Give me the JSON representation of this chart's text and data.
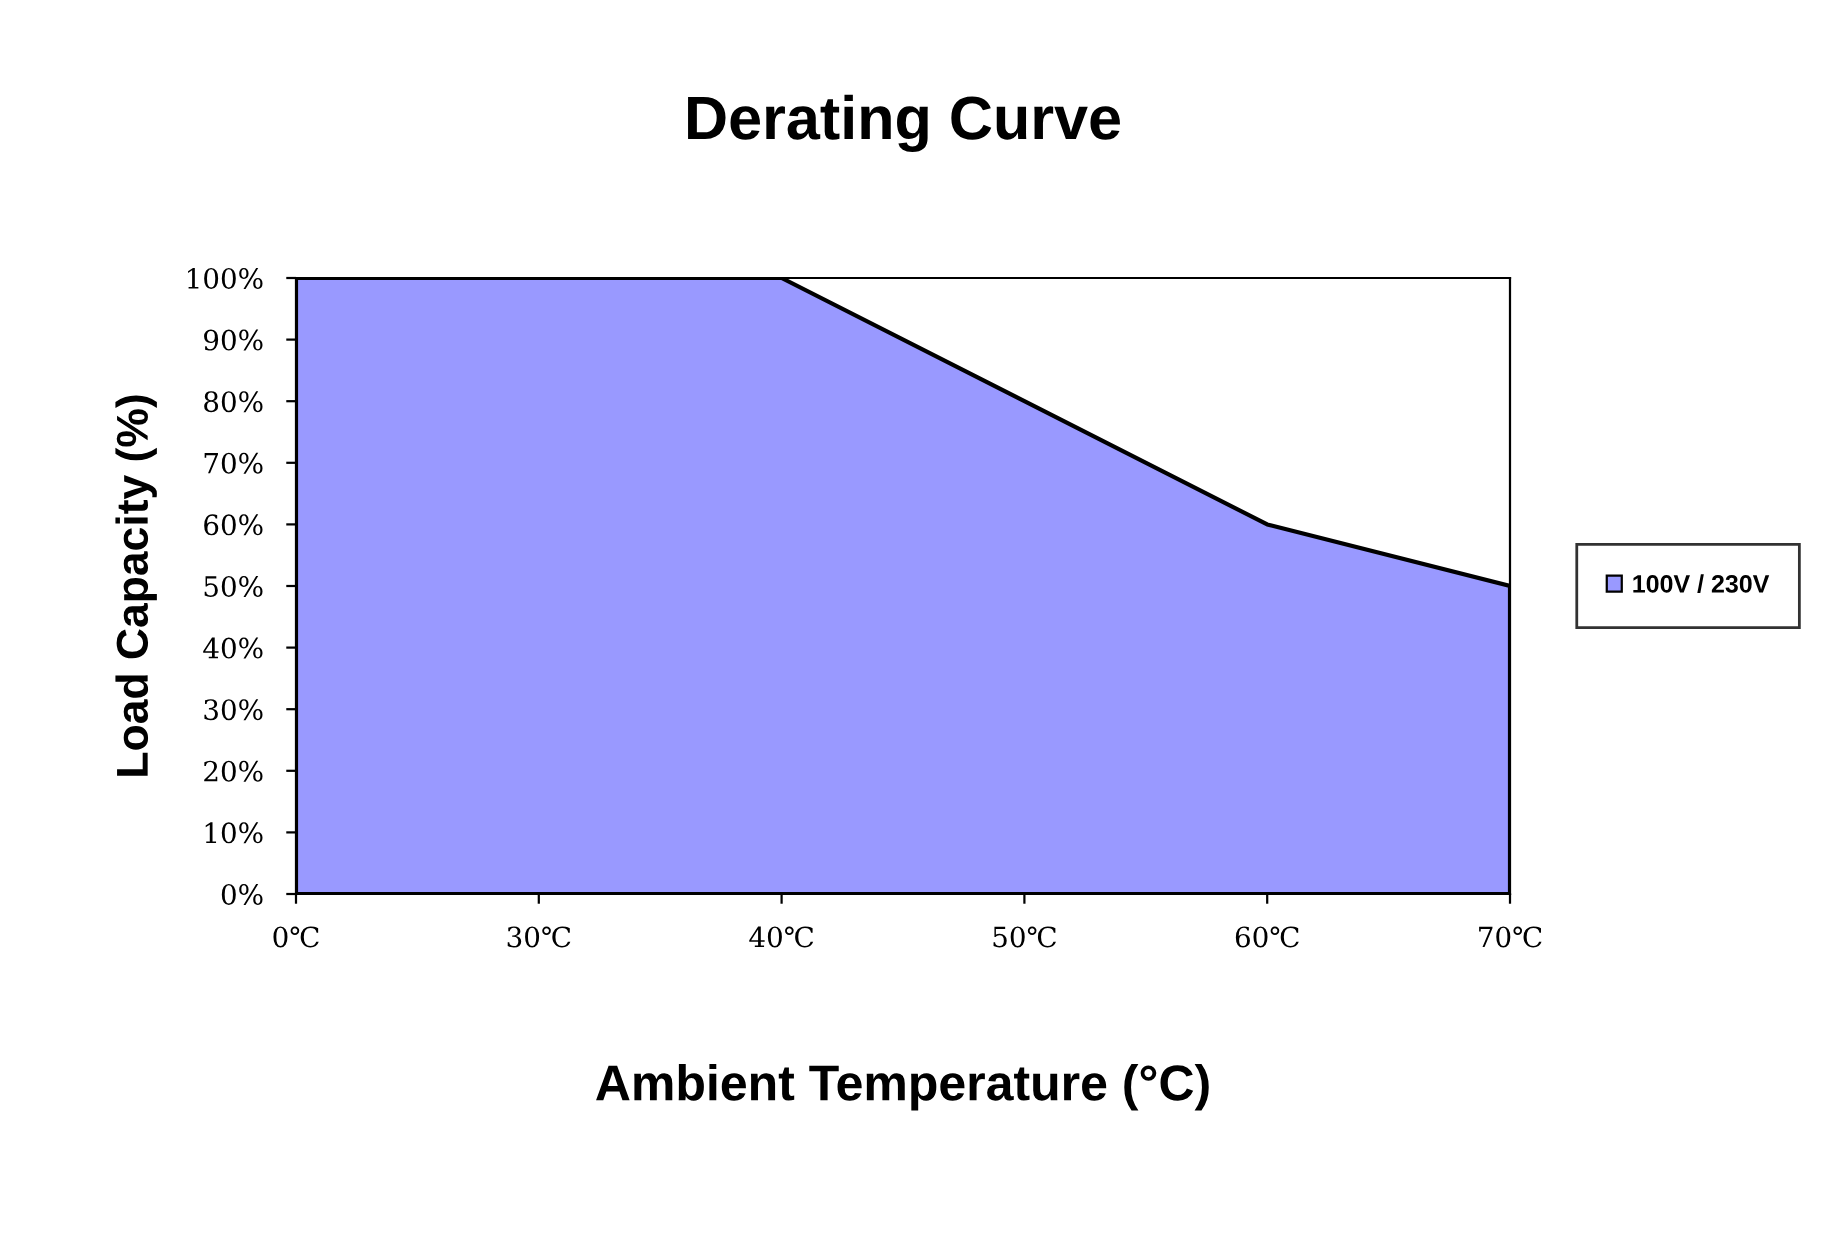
{
  "chart_data": {
    "type": "area",
    "title": "Derating Curve",
    "xlabel": "Ambient Temperature (°C)",
    "ylabel": "Load Capacity (%)",
    "categories": [
      "0℃",
      "30℃",
      "40℃",
      "50℃",
      "60℃",
      "70℃"
    ],
    "series": [
      {
        "name": "100V / 230V",
        "color": "#9999ff",
        "values": [
          100,
          100,
          100,
          80,
          60,
          50
        ]
      }
    ],
    "ylim": [
      0,
      100
    ],
    "yticks": [
      {
        "value": 0,
        "label": "0%"
      },
      {
        "value": 10,
        "label": "10%"
      },
      {
        "value": 20,
        "label": "20%"
      },
      {
        "value": 30,
        "label": "30%"
      },
      {
        "value": 40,
        "label": "40%"
      },
      {
        "value": 50,
        "label": "50%"
      },
      {
        "value": 60,
        "label": "60%"
      },
      {
        "value": 70,
        "label": "70%"
      },
      {
        "value": 80,
        "label": "80%"
      },
      {
        "value": 90,
        "label": "90%"
      },
      {
        "value": 100,
        "label": "100%"
      }
    ],
    "legend": "right",
    "grid": false
  }
}
